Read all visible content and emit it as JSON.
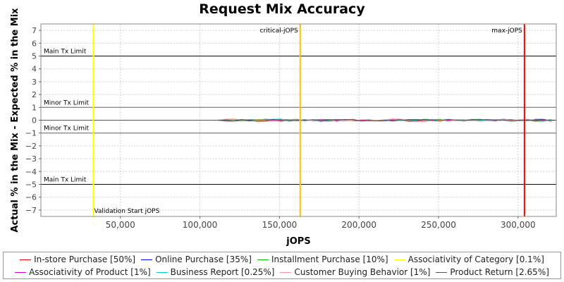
{
  "chart_data": {
    "type": "line",
    "title": "Request Mix Accuracy",
    "xlabel": "jOPS",
    "ylabel": "Actual % in the Mix - Expected % in the Mix",
    "xlim": [
      0,
      324000
    ],
    "ylim": [
      -7.5,
      7.5
    ],
    "x_ticks": [
      50000,
      100000,
      150000,
      200000,
      250000,
      300000
    ],
    "x_tick_labels": [
      "50,000",
      "100,000",
      "150,000",
      "200,000",
      "250,000",
      "300,000"
    ],
    "y_ticks": [
      -7,
      -6,
      -5,
      -4,
      -3,
      -2,
      -1,
      0,
      1,
      2,
      3,
      4,
      5,
      6,
      7
    ],
    "y_tick_labels": [
      "−7",
      "−6",
      "−5",
      "−4",
      "−3",
      "−2",
      "−1",
      "0",
      "1",
      "2",
      "3",
      "4",
      "5",
      "6",
      "7"
    ],
    "grid": true,
    "legend_placement": "bottom",
    "horizontal_limits": [
      {
        "label": "Main Tx Limit",
        "y": 5,
        "color": "#000066"
      },
      {
        "label": "Minor Tx Limit",
        "y": 1,
        "color": "#666666"
      },
      {
        "label": "Minor Tx Limit",
        "y": -1,
        "color": "#666666"
      },
      {
        "label": "Main Tx Limit",
        "y": -5,
        "color": "#000066"
      }
    ],
    "vertical_markers": [
      {
        "label": "Validation Start jOPS",
        "x": 33000,
        "color": "#ffff00",
        "label_position": "bottom"
      },
      {
        "label": "critical-jOPS",
        "x": 163000,
        "color": "#ffc000",
        "label_position": "top"
      },
      {
        "label": "max-jOPS",
        "x": 304000,
        "color": "#ff0000",
        "label_position": "top"
      }
    ],
    "series": [
      {
        "name": "In-store Purchase [50%]",
        "color": "#ff0000",
        "amp": 0.06
      },
      {
        "name": "Online Purchase [35%]",
        "color": "#0000ff",
        "amp": 0.05
      },
      {
        "name": "Installment Purchase [10%]",
        "color": "#00cc00",
        "amp": 0.05
      },
      {
        "name": "Associativity of Category [0.1%]",
        "color": "#ffff00",
        "amp": 0.01
      },
      {
        "name": "Associativity of Product [1%]",
        "color": "#cc00cc",
        "amp": 0.03
      },
      {
        "name": "Business Report [0.25%]",
        "color": "#00cccc",
        "amp": 0.06
      },
      {
        "name": "Customer Buying Behavior [1%]",
        "color": "#ff9999",
        "amp": 0.07
      },
      {
        "name": "Product Return [2.65%]",
        "color": "#555555",
        "amp": 0.04
      }
    ],
    "x_start": 1000,
    "x_end": 324000,
    "x_step": 5000,
    "noise_from": 115000
  }
}
